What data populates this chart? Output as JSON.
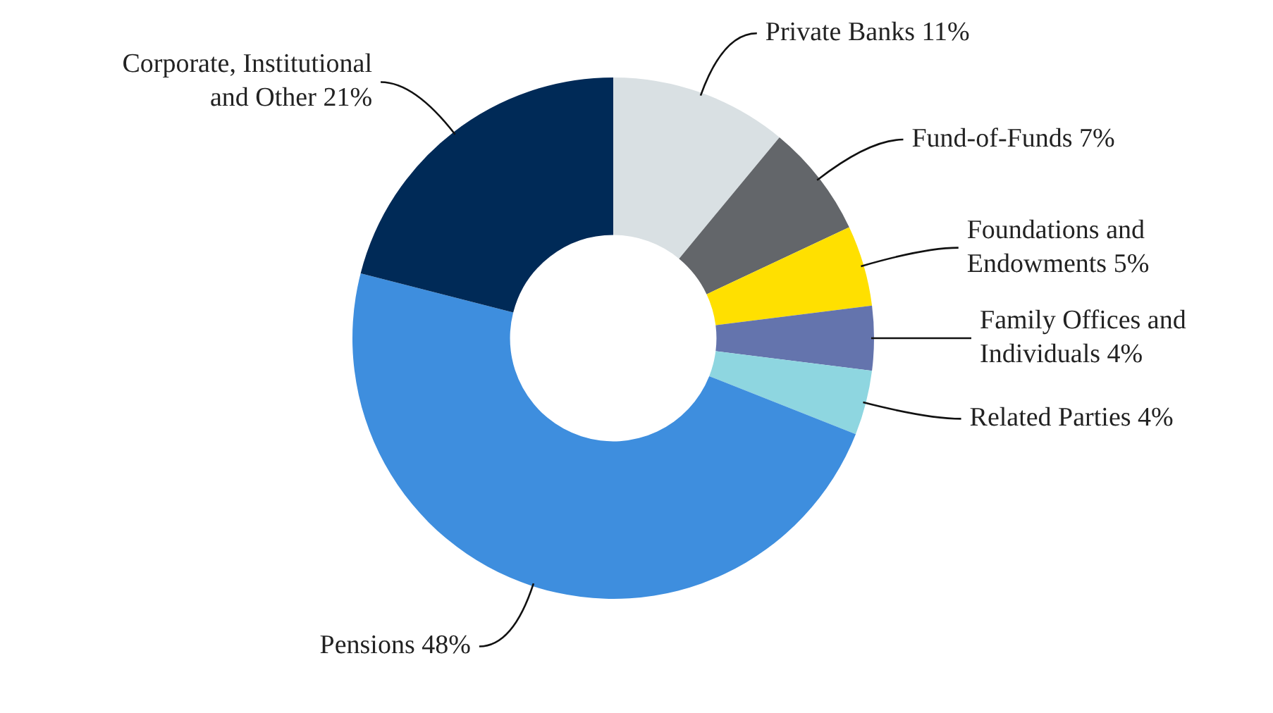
{
  "chart_data": {
    "type": "donut",
    "categories": [
      "Private Banks",
      "Fund-of-Funds",
      "Foundations and Endowments",
      "Family Offices and Individuals",
      "Related Parties",
      "Pensions",
      "Corporate, Institutional and Other"
    ],
    "values": [
      11,
      7,
      5,
      4,
      4,
      48,
      21
    ],
    "value_labels": [
      "11%",
      "7%",
      "5%",
      "4%",
      "4%",
      "48%",
      "21%"
    ],
    "colors": [
      "#d9e0e3",
      "#63666a",
      "#ffe000",
      "#6474ad",
      "#8ed6e0",
      "#3e8ede",
      "#002a57"
    ],
    "legend": false
  }
}
